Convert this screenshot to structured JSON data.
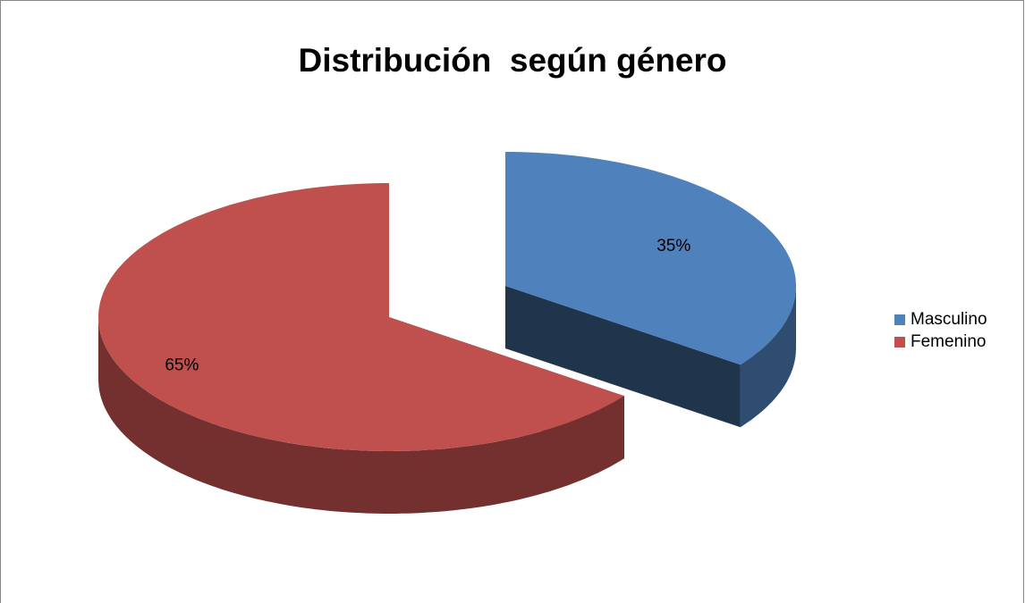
{
  "chart_data": {
    "type": "pie",
    "title": "Distribución  según género",
    "categories": [
      "Masculino",
      "Femenino"
    ],
    "values": [
      35,
      65
    ],
    "value_labels": [
      "35%",
      "65%"
    ],
    "colors": [
      "#4f81bd",
      "#c0504d"
    ],
    "legend": "right"
  }
}
